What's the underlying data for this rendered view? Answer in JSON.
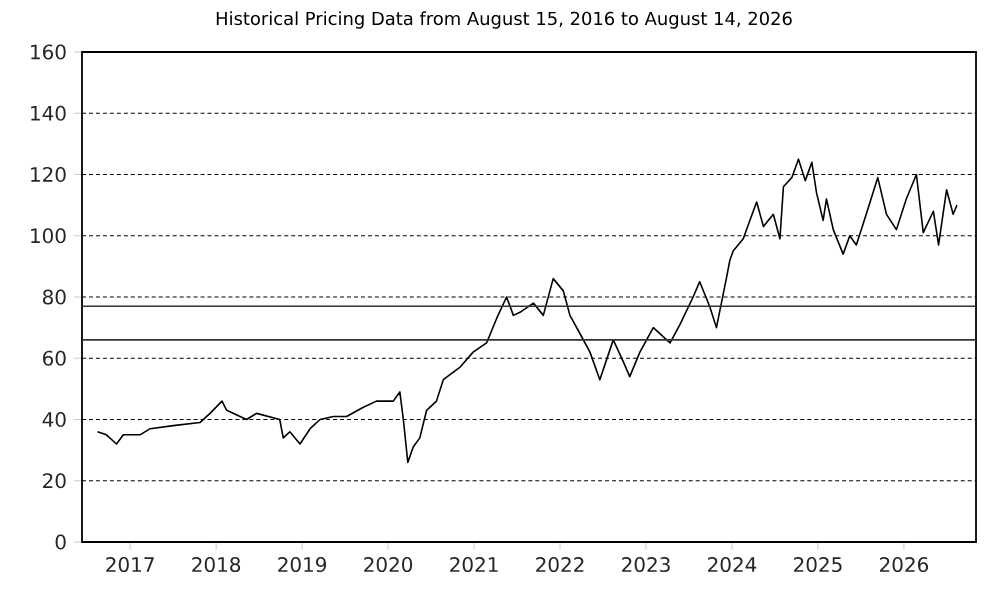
{
  "chart_data": {
    "type": "line",
    "title": "Historical Pricing Data from August 15, 2016 to August 14, 2026",
    "x": [
      "2016-08-15",
      "2016-09-22",
      "2016-11-04",
      "2016-12-03",
      "2017-02-12",
      "2017-03-27",
      "2017-07-03",
      "2017-10-24",
      "2017-12-06",
      "2018-01-26",
      "2018-02-15",
      "2018-05-10",
      "2018-06-22",
      "2018-09-28",
      "2018-10-13",
      "2018-11-10",
      "2018-12-23",
      "2019-02-04",
      "2019-03-18",
      "2019-05-14",
      "2019-07-09",
      "2019-09-18",
      "2019-11-13",
      "2020-01-23",
      "2020-02-20",
      "2020-03-06",
      "2020-03-25",
      "2020-04-17",
      "2020-05-15",
      "2020-06-13",
      "2020-07-25",
      "2020-08-23",
      "2020-11-01",
      "2020-12-28",
      "2021-02-23",
      "2021-04-07",
      "2021-05-19",
      "2021-06-17",
      "2021-07-15",
      "2021-09-10",
      "2021-10-22",
      "2021-12-03",
      "2022-01-15",
      "2022-02-12",
      "2022-03-27",
      "2022-05-08",
      "2022-06-19",
      "2022-08-15",
      "2022-09-26",
      "2022-10-24",
      "2022-12-06",
      "2023-02-01",
      "2023-04-13",
      "2023-05-25",
      "2023-07-20",
      "2023-08-17",
      "2023-09-28",
      "2023-10-27",
      "2023-12-08",
      "2023-12-23",
      "2024-01-06",
      "2024-02-18",
      "2024-03-17",
      "2024-04-15",
      "2024-05-14",
      "2024-06-25",
      "2024-07-23",
      "2024-08-07",
      "2024-09-12",
      "2024-10-10",
      "2024-11-08",
      "2024-12-06",
      "2024-12-26",
      "2025-01-23",
      "2025-02-06",
      "2025-03-07",
      "2025-04-18",
      "2025-05-16",
      "2025-06-13",
      "2025-07-25",
      "2025-09-12",
      "2025-10-19",
      "2025-11-30",
      "2026-01-11",
      "2026-02-23",
      "2026-03-24",
      "2026-05-06",
      "2026-05-28",
      "2026-07-01",
      "2026-07-29",
      "2026-08-14"
    ],
    "series": [
      {
        "color": "#000000",
        "values": [
          36,
          35,
          32,
          35,
          35,
          37,
          38,
          39,
          42,
          46,
          43,
          40,
          42,
          40,
          34,
          36,
          32,
          37,
          40,
          41,
          41,
          44,
          46,
          46,
          49,
          40,
          26,
          31,
          34,
          43,
          46,
          53,
          57,
          62,
          65,
          73,
          80,
          74,
          75,
          78,
          74,
          86,
          82,
          74,
          68,
          62,
          53,
          66,
          59,
          54,
          62,
          70,
          65,
          71,
          80,
          85,
          77,
          70,
          86,
          92,
          95,
          99,
          105,
          111,
          103,
          107,
          99,
          116,
          119,
          125,
          118,
          124,
          114,
          105,
          112,
          102,
          94,
          100,
          97,
          107,
          119,
          107,
          102,
          112,
          120,
          101,
          108,
          97,
          115,
          107,
          110
        ]
      }
    ],
    "xlim": [
      "2016-06-10",
      "2026-11-03"
    ],
    "xticks": [
      {
        "value": "2017-01-01",
        "label": "2017"
      },
      {
        "value": "2018-01-01",
        "label": "2018"
      },
      {
        "value": "2019-01-01",
        "label": "2019"
      },
      {
        "value": "2020-01-01",
        "label": "2020"
      },
      {
        "value": "2021-01-01",
        "label": "2021"
      },
      {
        "value": "2022-01-01",
        "label": "2022"
      },
      {
        "value": "2023-01-01",
        "label": "2023"
      },
      {
        "value": "2024-01-01",
        "label": "2024"
      },
      {
        "value": "2025-01-01",
        "label": "2025"
      },
      {
        "value": "2026-01-01",
        "label": "2026"
      }
    ],
    "ylim": [
      0,
      160
    ],
    "yticks": [
      0,
      20,
      40,
      60,
      80,
      100,
      120,
      140,
      160
    ],
    "grid": "y",
    "ref_lines": [
      {
        "axis": "y",
        "value": 77,
        "color": "#333333",
        "line_style": "solid"
      },
      {
        "axis": "y",
        "value": 66,
        "color": "#333333",
        "line_style": "solid"
      }
    ],
    "marker": "none",
    "line_style": "solid"
  }
}
